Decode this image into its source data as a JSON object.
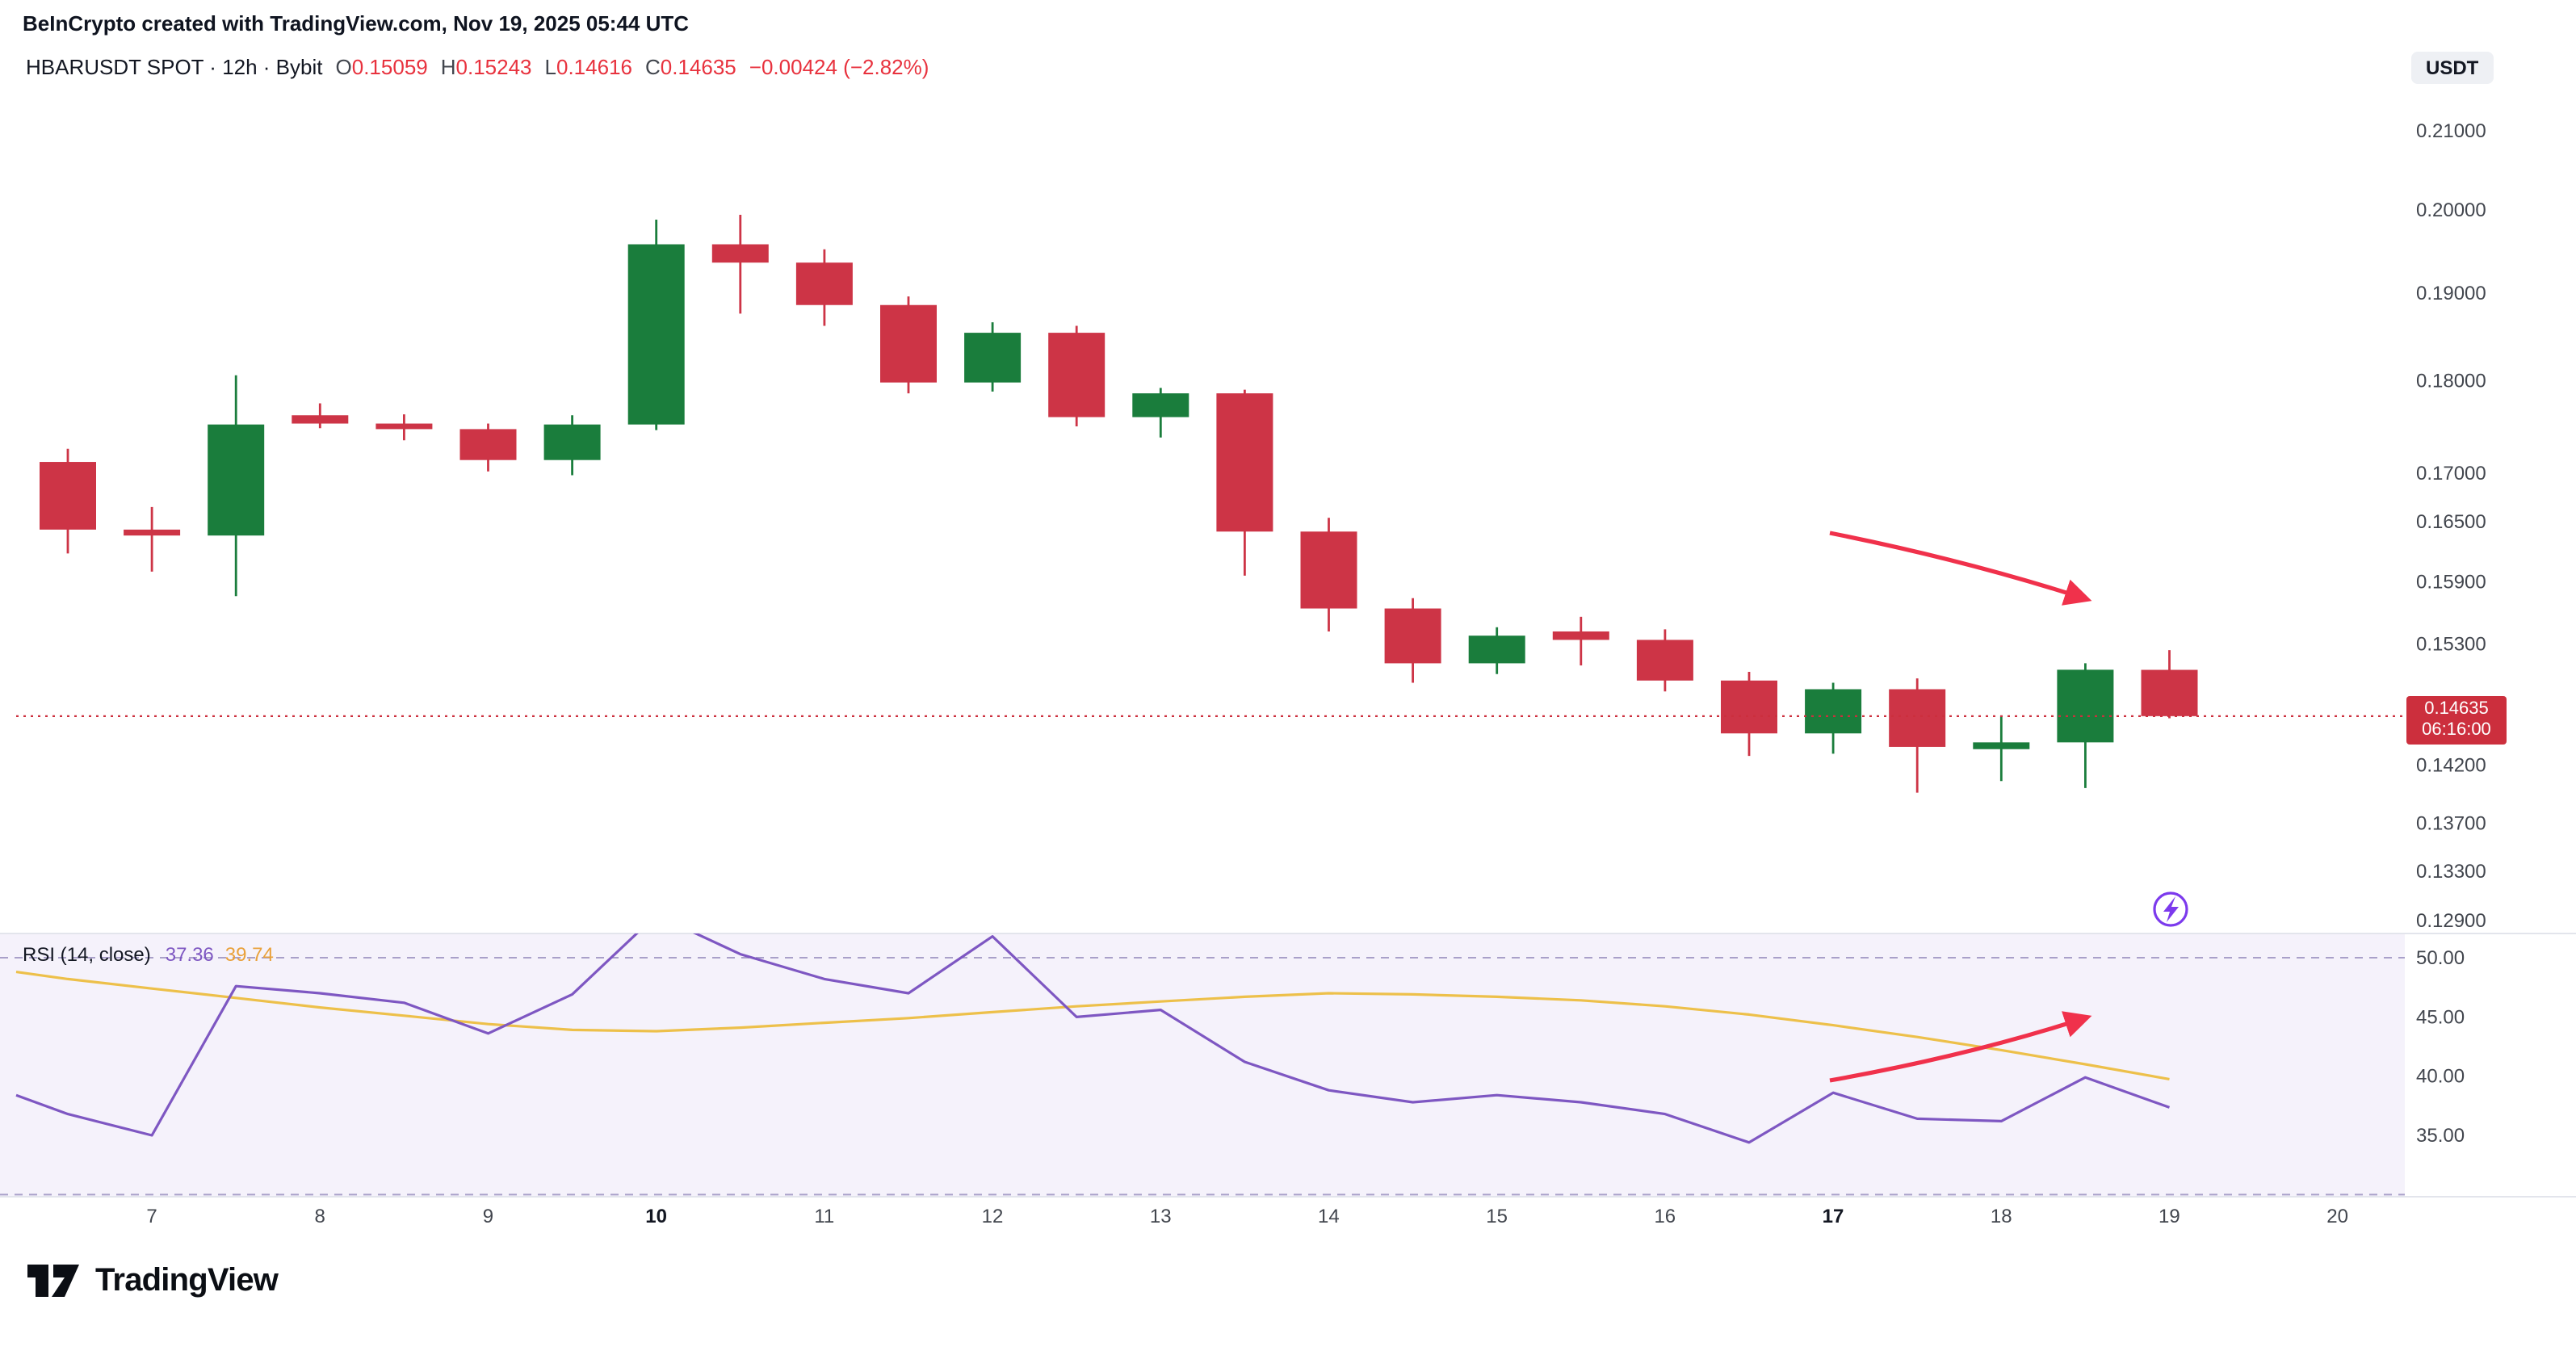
{
  "page": {
    "attribution": "BeInCrypto created with TradingView.com, Nov 19, 2025 05:44 UTC",
    "brand": "TradingView"
  },
  "header": {
    "symbol_line": "HBARUSDT SPOT · 12h · Bybit",
    "ohlc": {
      "o_label": "O",
      "o": "0.15059",
      "h_label": "H",
      "h": "0.15243",
      "l_label": "L",
      "l": "0.14616",
      "c_label": "C",
      "c": "0.14635",
      "change": "−0.00424 (−2.82%)"
    },
    "currency_button": "USDT"
  },
  "colors": {
    "up": "#1a7d3c",
    "down": "#cd3446",
    "arrow": "#f0314b",
    "rsi": "#7e57c2",
    "ma": "#edc04a",
    "rsi_bg": "#f5f2fb",
    "guide": "#a9a0c9",
    "axis_text": "#42464e",
    "axis_text_bold": "#131722",
    "badge": "#cc2f3d",
    "bolt": "#7c3aed",
    "divider": "#e3e5ec"
  },
  "chart_data": {
    "type": "candlestick",
    "title": "HBARUSDT SPOT · 12h · Bybit",
    "price_scale": "log",
    "interval": "12h",
    "y_axis": {
      "labels": [
        "0.21000",
        "0.20000",
        "0.19000",
        "0.18000",
        "0.17000",
        "0.16500",
        "0.15900",
        "0.15300",
        "0.14200",
        "0.13700",
        "0.13300",
        "0.12900"
      ]
    },
    "x_axis": {
      "labels": [
        {
          "label": "7",
          "bold": false
        },
        {
          "label": "8",
          "bold": false
        },
        {
          "label": "9",
          "bold": false
        },
        {
          "label": "10",
          "bold": true
        },
        {
          "label": "11",
          "bold": false
        },
        {
          "label": "12",
          "bold": false
        },
        {
          "label": "13",
          "bold": false
        },
        {
          "label": "14",
          "bold": false
        },
        {
          "label": "15",
          "bold": false
        },
        {
          "label": "16",
          "bold": false
        },
        {
          "label": "17",
          "bold": true
        },
        {
          "label": "18",
          "bold": false
        },
        {
          "label": "19",
          "bold": false
        },
        {
          "label": "20",
          "bold": false
        }
      ]
    },
    "candles": [
      {
        "o": 0.1712,
        "h": 0.1726,
        "l": 0.1618,
        "c": 0.1642
      },
      {
        "o": 0.1642,
        "h": 0.1665,
        "l": 0.16,
        "c": 0.1636
      },
      {
        "o": 0.1636,
        "h": 0.1806,
        "l": 0.1576,
        "c": 0.1752
      },
      {
        "o": 0.1762,
        "h": 0.1775,
        "l": 0.1748,
        "c": 0.1753
      },
      {
        "o": 0.1753,
        "h": 0.1763,
        "l": 0.1735,
        "c": 0.1747
      },
      {
        "o": 0.1747,
        "h": 0.1753,
        "l": 0.1702,
        "c": 0.1714
      },
      {
        "o": 0.1714,
        "h": 0.1762,
        "l": 0.1698,
        "c": 0.1752
      },
      {
        "o": 0.1752,
        "h": 0.1988,
        "l": 0.1746,
        "c": 0.1958
      },
      {
        "o": 0.1958,
        "h": 0.1994,
        "l": 0.1876,
        "c": 0.1936
      },
      {
        "o": 0.1936,
        "h": 0.1952,
        "l": 0.1862,
        "c": 0.1886
      },
      {
        "o": 0.1886,
        "h": 0.1896,
        "l": 0.1786,
        "c": 0.1798
      },
      {
        "o": 0.1798,
        "h": 0.1866,
        "l": 0.1788,
        "c": 0.1854
      },
      {
        "o": 0.1854,
        "h": 0.1862,
        "l": 0.175,
        "c": 0.176
      },
      {
        "o": 0.176,
        "h": 0.1792,
        "l": 0.1738,
        "c": 0.1786
      },
      {
        "o": 0.1786,
        "h": 0.179,
        "l": 0.1596,
        "c": 0.164
      },
      {
        "o": 0.164,
        "h": 0.1654,
        "l": 0.1542,
        "c": 0.1564
      },
      {
        "o": 0.1564,
        "h": 0.1574,
        "l": 0.1494,
        "c": 0.1512
      },
      {
        "o": 0.1512,
        "h": 0.1546,
        "l": 0.1502,
        "c": 0.1538
      },
      {
        "o": 0.1542,
        "h": 0.1556,
        "l": 0.151,
        "c": 0.1534
      },
      {
        "o": 0.1534,
        "h": 0.1544,
        "l": 0.1486,
        "c": 0.1496
      },
      {
        "o": 0.1496,
        "h": 0.1504,
        "l": 0.1428,
        "c": 0.1448
      },
      {
        "o": 0.1448,
        "h": 0.1494,
        "l": 0.143,
        "c": 0.1488
      },
      {
        "o": 0.1488,
        "h": 0.1498,
        "l": 0.1396,
        "c": 0.1436
      },
      {
        "o": 0.1434,
        "h": 0.1464,
        "l": 0.1406,
        "c": 0.144
      },
      {
        "o": 0.144,
        "h": 0.1512,
        "l": 0.14,
        "c": 0.1506
      },
      {
        "o": 0.15059,
        "h": 0.15243,
        "l": 0.14616,
        "c": 0.14635
      }
    ],
    "last_price": {
      "price": "0.14635",
      "countdown": "06:16:00"
    },
    "rsi": {
      "name": "RSI (14, close)",
      "value": "37.36",
      "ma_value": "39.74",
      "levels": [
        "50.00",
        "45.00",
        "40.00",
        "35.00"
      ],
      "guides": [
        50,
        30
      ],
      "edge": {
        "rsi": 38.4,
        "ma": 48.8
      },
      "series": [
        36.8,
        35.0,
        47.6,
        47.0,
        46.2,
        43.6,
        46.9,
        53.6,
        50.3,
        48.2,
        47.0,
        51.8,
        45.0,
        45.6,
        41.2,
        38.8,
        37.8,
        38.4,
        37.8,
        36.8,
        34.4,
        38.6,
        36.4,
        36.2,
        39.9,
        37.36
      ],
      "ma_series": [
        48.2,
        47.4,
        46.6,
        45.8,
        45.1,
        44.4,
        43.9,
        43.8,
        44.1,
        44.5,
        44.9,
        45.4,
        45.9,
        46.3,
        46.7,
        47.0,
        46.9,
        46.7,
        46.4,
        45.9,
        45.2,
        44.3,
        43.3,
        42.2,
        41.0,
        39.74
      ]
    },
    "annotations": {
      "arrows": [
        {
          "panel": "price",
          "direction": "down-right"
        },
        {
          "panel": "rsi",
          "direction": "up-right"
        }
      ],
      "lightning_icon": true
    }
  }
}
